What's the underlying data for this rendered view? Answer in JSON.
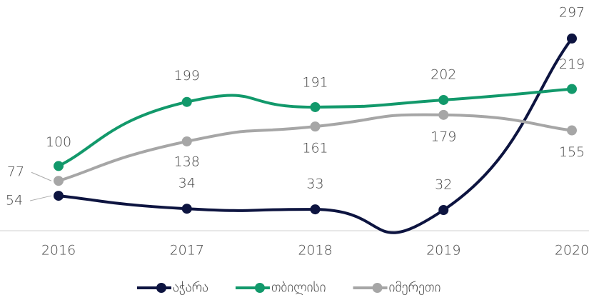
{
  "chart_data": {
    "type": "line",
    "categories": [
      "2016",
      "2017",
      "2018",
      "2019",
      "2020"
    ],
    "series": [
      {
        "name": "აჭარა",
        "color": "#0d1440",
        "values": [
          54,
          34,
          33,
          32,
          297
        ]
      },
      {
        "name": "თბილისი",
        "color": "#12996b",
        "values": [
          100,
          199,
          191,
          202,
          219
        ]
      },
      {
        "name": "იმერეთი",
        "color": "#a6a6a6",
        "values": [
          77,
          138,
          161,
          179,
          155
        ]
      }
    ],
    "ylim": [
      0,
      330
    ],
    "legend": "bottom"
  }
}
